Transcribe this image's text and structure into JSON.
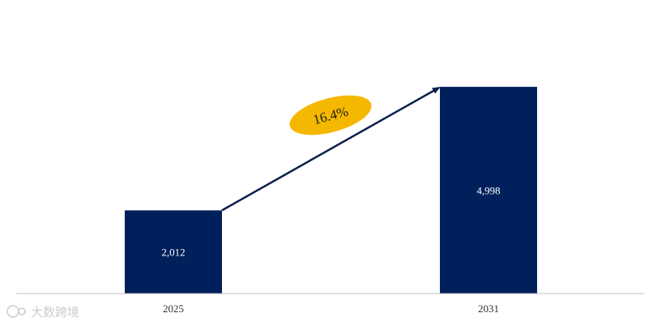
{
  "chart_data": {
    "type": "bar",
    "title": "",
    "xlabel": "",
    "ylabel": "",
    "categories": [
      "2025",
      "2031"
    ],
    "values": [
      2012,
      4998
    ],
    "value_labels": [
      "2,012",
      "4,998"
    ],
    "ylim": [
      0,
      5000
    ],
    "grid": false,
    "legend": "none",
    "annotation": {
      "type": "cagr-arrow",
      "text": "16.4%",
      "from": "2025",
      "to": "2031"
    }
  },
  "colors": {
    "bar": "#00205B",
    "arrow": "#0B1F4D",
    "badge": "#F5B800",
    "axis": "#BFBFBF"
  },
  "watermark": {
    "text": "大数跨境",
    "icon": "watermark-logo-icon"
  }
}
